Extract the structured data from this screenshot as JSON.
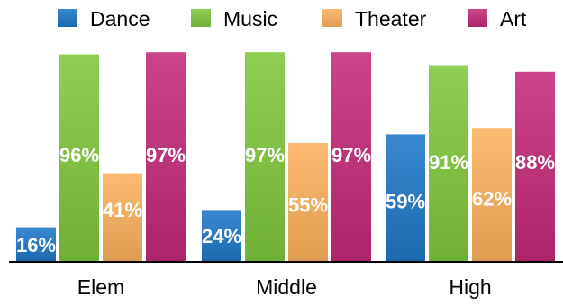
{
  "chart_data": {
    "type": "bar",
    "categories": [
      "Elem",
      "Middle",
      "High"
    ],
    "series": [
      {
        "name": "Dance",
        "values": [
          16,
          24,
          59
        ],
        "color": "#1f78c8"
      },
      {
        "name": "Music",
        "values": [
          96,
          97,
          91
        ],
        "color": "#7fc93c"
      },
      {
        "name": "Theater",
        "values": [
          41,
          55,
          62
        ],
        "color": "#fcb25c"
      },
      {
        "name": "Art",
        "values": [
          97,
          97,
          88
        ],
        "color": "#c42a79"
      }
    ],
    "value_suffix": "%",
    "ylim": [
      0,
      100
    ],
    "legend_position": "top",
    "grid": false,
    "title": "",
    "xlabel": "",
    "ylabel": ""
  }
}
